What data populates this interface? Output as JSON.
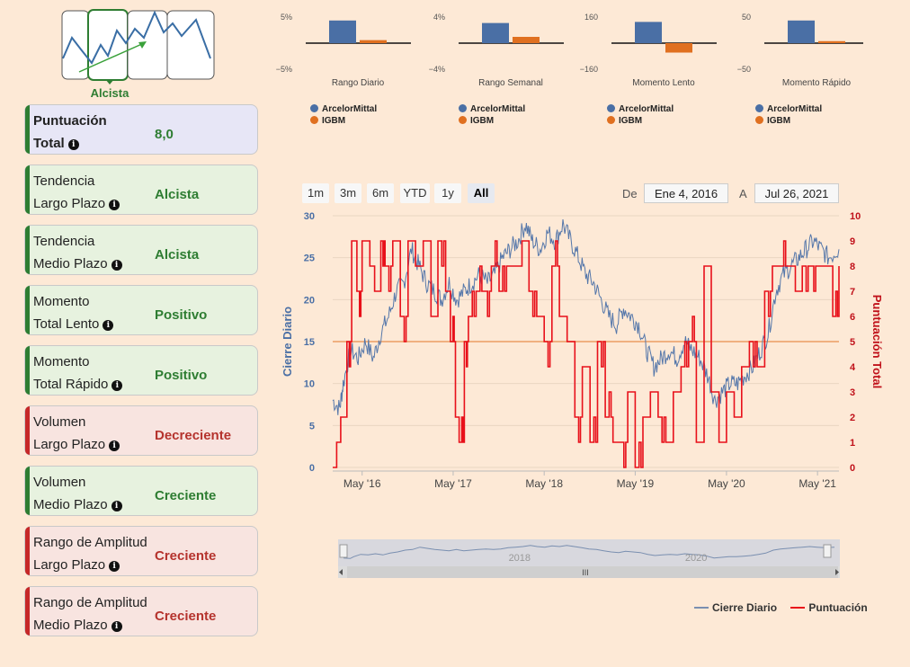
{
  "trend_badge": {
    "label": "Alcista"
  },
  "cards": [
    {
      "line1": "Puntuación",
      "line2": "Total",
      "value": "8,0",
      "style": "blue"
    },
    {
      "line1": "Tendencia",
      "line2": "Largo Plazo",
      "value": "Alcista",
      "style": "green"
    },
    {
      "line1": "Tendencia",
      "line2": "Medio Plazo",
      "value": "Alcista",
      "style": "green"
    },
    {
      "line1": "Momento",
      "line2": "Total Lento",
      "value": "Positivo",
      "style": "green"
    },
    {
      "line1": "Momento",
      "line2": "Total Rápido",
      "value": "Positivo",
      "style": "green"
    },
    {
      "line1": "Volumen",
      "line2": "Largo Plazo",
      "value": "Decreciente",
      "style": "red"
    },
    {
      "line1": "Volumen",
      "line2": "Medio Plazo",
      "value": "Creciente",
      "style": "green"
    },
    {
      "line1": "Rango de Amplitud",
      "line2": "Largo Plazo",
      "value": "Creciente",
      "style": "red"
    },
    {
      "line1": "Rango de Amplitud",
      "line2": "Medio Plazo",
      "value": "Creciente",
      "style": "red"
    }
  ],
  "colors": {
    "stock": "#4a6fa5",
    "index": "#e07020",
    "score": "#e8101a",
    "threshold": "#f0b080",
    "green": "#2e7d32"
  },
  "range_buttons": [
    "1m",
    "3m",
    "6m",
    "YTD",
    "1y",
    "All"
  ],
  "selected_range": "All",
  "date_range": {
    "from_label": "De",
    "from": "Ene 4, 2016",
    "to_label": "A",
    "to": "Jul 26, 2021"
  },
  "navigator": {
    "labels": [
      "2018",
      "2020"
    ]
  },
  "chart_data": [
    {
      "type": "bar",
      "title": "Rango Diario",
      "ytick_top": "5%",
      "ytick_bottom": "−5%",
      "ylim": [
        -5,
        5
      ],
      "series": [
        {
          "name": "ArcelorMittal",
          "values": [
            4.5
          ]
        },
        {
          "name": "IGBM",
          "values": [
            0.6
          ]
        }
      ]
    },
    {
      "type": "bar",
      "title": "Rango Semanal",
      "ytick_top": "4%",
      "ytick_bottom": "−4%",
      "ylim": [
        -4,
        4
      ],
      "series": [
        {
          "name": "ArcelorMittal",
          "values": [
            3.2
          ]
        },
        {
          "name": "IGBM",
          "values": [
            1.0
          ]
        }
      ]
    },
    {
      "type": "bar",
      "title": "Momento Lento",
      "ytick_top": "160",
      "ytick_bottom": "−160",
      "ylim": [
        -160,
        160
      ],
      "series": [
        {
          "name": "ArcelorMittal",
          "values": [
            135
          ]
        },
        {
          "name": "IGBM",
          "values": [
            -60
          ]
        }
      ]
    },
    {
      "type": "bar",
      "title": "Momento Rápido",
      "ytick_top": "50",
      "ytick_bottom": "−50",
      "ylim": [
        -50,
        50
      ],
      "series": [
        {
          "name": "ArcelorMittal",
          "values": [
            45
          ]
        },
        {
          "name": "IGBM",
          "values": [
            4
          ]
        }
      ]
    },
    {
      "type": "line",
      "ylabel": "Cierre Diario",
      "y2label": "Puntuación Total",
      "ylim": [
        0,
        30
      ],
      "y2lim": [
        0,
        10
      ],
      "yticks": [
        0,
        5,
        10,
        15,
        20,
        25,
        30
      ],
      "y2ticks": [
        0,
        1,
        2,
        3,
        4,
        5,
        6,
        7,
        8,
        9,
        10
      ],
      "xlim": [
        "2016-01-04",
        "2021-07-26"
      ],
      "xticks": [
        [
          "2016-05-01",
          "May '16"
        ],
        [
          "2017-05-01",
          "May '17"
        ],
        [
          "2018-05-01",
          "May '18"
        ],
        [
          "2019-05-01",
          "May '19"
        ],
        [
          "2020-05-01",
          "May '20"
        ],
        [
          "2021-05-01",
          "May '21"
        ]
      ],
      "threshold": 5,
      "legend": [
        "Cierre Diario",
        "Puntuación"
      ],
      "series": [
        {
          "name": "Cierre Diario",
          "axis": "left",
          "x": [
            "2016-01-04",
            "2016-02-01",
            "2016-02-15",
            "2016-03-15",
            "2016-04-15",
            "2016-05-15",
            "2016-06-15",
            "2016-07-15",
            "2016-08-15",
            "2016-09-15",
            "2016-10-15",
            "2016-11-15",
            "2016-12-15",
            "2017-01-15",
            "2017-02-15",
            "2017-03-15",
            "2017-04-15",
            "2017-05-15",
            "2017-06-15",
            "2017-07-15",
            "2017-08-15",
            "2017-09-15",
            "2017-10-15",
            "2017-11-15",
            "2017-12-15",
            "2018-01-15",
            "2018-02-15",
            "2018-03-15",
            "2018-04-15",
            "2018-05-15",
            "2018-06-15",
            "2018-07-15",
            "2018-08-15",
            "2018-09-15",
            "2018-10-15",
            "2018-11-15",
            "2018-12-15",
            "2019-01-15",
            "2019-02-15",
            "2019-03-15",
            "2019-04-15",
            "2019-05-15",
            "2019-06-15",
            "2019-07-15",
            "2019-08-15",
            "2019-09-15",
            "2019-10-15",
            "2019-11-15",
            "2019-12-15",
            "2020-01-15",
            "2020-02-15",
            "2020-03-15",
            "2020-04-15",
            "2020-05-15",
            "2020-06-15",
            "2020-07-15",
            "2020-08-15",
            "2020-09-15",
            "2020-10-15",
            "2020-11-15",
            "2020-12-15",
            "2021-01-15",
            "2021-02-15",
            "2021-03-15",
            "2021-04-15",
            "2021-05-15",
            "2021-06-15",
            "2021-07-26"
          ],
          "y": [
            8,
            7,
            10,
            14,
            13,
            15,
            13,
            16,
            18,
            21,
            22,
            26,
            24,
            22,
            21,
            20,
            22,
            20,
            21,
            22,
            23,
            22,
            23,
            25,
            26,
            27,
            29,
            27,
            26,
            28,
            27,
            29,
            27,
            25,
            23,
            22,
            20,
            18,
            17,
            19,
            18,
            17,
            14,
            12,
            13,
            14,
            13,
            15,
            14,
            13,
            11,
            8,
            9,
            10,
            10,
            11,
            12,
            14,
            16,
            21,
            23,
            24,
            25,
            26,
            27,
            26,
            25,
            26
          ]
        },
        {
          "name": "Puntuación",
          "axis": "right",
          "x": [
            "2016-01-04",
            "2016-01-20",
            "2016-02-05",
            "2016-03-01",
            "2016-03-20",
            "2016-04-10",
            "2016-05-01",
            "2016-06-01",
            "2016-06-20",
            "2016-07-15",
            "2016-08-01",
            "2016-09-01",
            "2016-10-01",
            "2016-11-01",
            "2016-12-01",
            "2017-01-01",
            "2017-02-01",
            "2017-03-01",
            "2017-04-01",
            "2017-04-20",
            "2017-05-10",
            "2017-05-25",
            "2017-06-15",
            "2017-07-01",
            "2017-08-01",
            "2017-09-01",
            "2017-10-01",
            "2017-11-01",
            "2017-12-01",
            "2018-01-01",
            "2018-02-01",
            "2018-03-01",
            "2018-04-01",
            "2018-05-01",
            "2018-06-01",
            "2018-07-01",
            "2018-08-01",
            "2018-09-01",
            "2018-10-01",
            "2018-11-01",
            "2018-12-01",
            "2019-01-01",
            "2019-02-01",
            "2019-03-01",
            "2019-04-01",
            "2019-05-01",
            "2019-06-01",
            "2019-07-01",
            "2019-08-01",
            "2019-09-01",
            "2019-10-01",
            "2019-11-01",
            "2019-12-01",
            "2020-01-01",
            "2020-02-01",
            "2020-03-01",
            "2020-04-01",
            "2020-05-01",
            "2020-06-01",
            "2020-07-01",
            "2020-08-01",
            "2020-09-01",
            "2020-10-01",
            "2020-11-01",
            "2020-12-01",
            "2021-01-01",
            "2021-02-01",
            "2021-03-01",
            "2021-04-01",
            "2021-05-01",
            "2021-06-01",
            "2021-07-01",
            "2021-07-26"
          ],
          "y": [
            0,
            1,
            2,
            5,
            9,
            7,
            9,
            8,
            7,
            9,
            8,
            9,
            6,
            9,
            8,
            9,
            6,
            9,
            7,
            5,
            2,
            1,
            5,
            6,
            7,
            7,
            8,
            7,
            8,
            8,
            9,
            7,
            6,
            5,
            8,
            6,
            5,
            2,
            4,
            1,
            5,
            2,
            1,
            1,
            3,
            0,
            2,
            3,
            2,
            1,
            3,
            4,
            5,
            1,
            8,
            3,
            1,
            3,
            2,
            4,
            5,
            4,
            7,
            8,
            8,
            8,
            7,
            8,
            8,
            8,
            8,
            6,
            8
          ]
        }
      ]
    }
  ]
}
